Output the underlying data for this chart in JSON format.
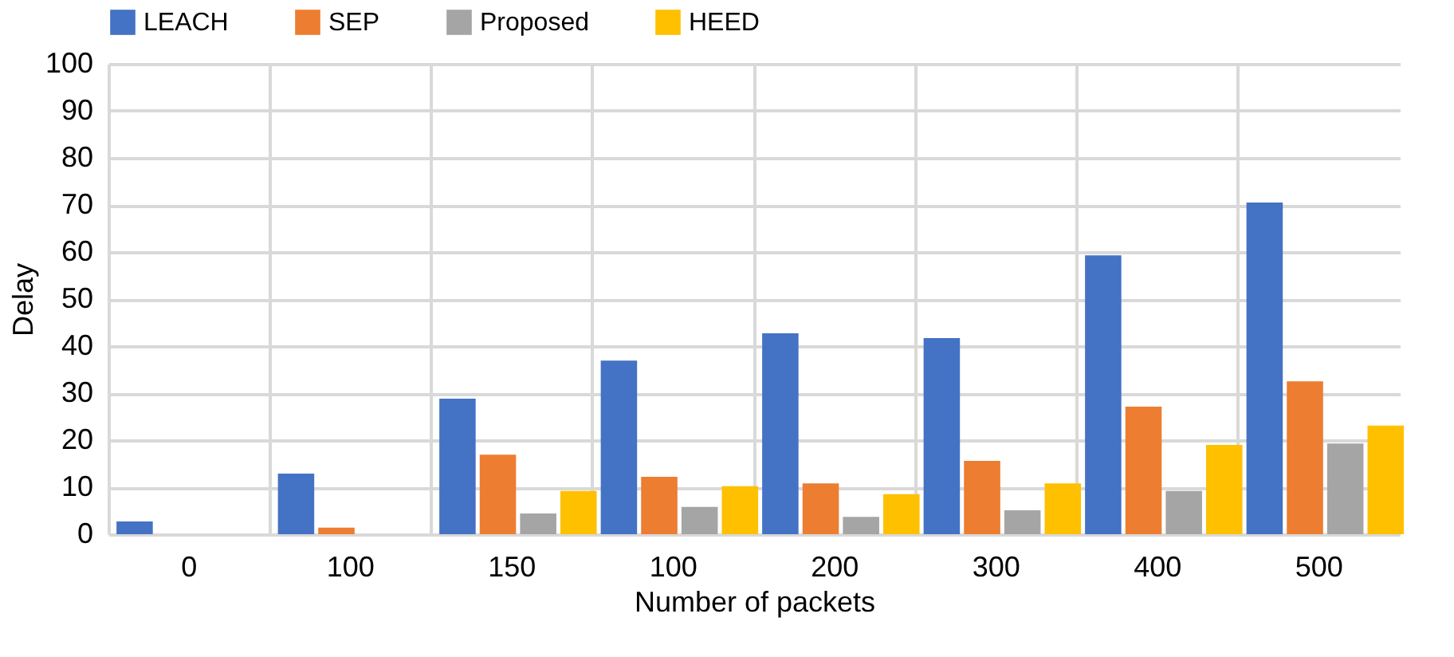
{
  "chart_data": {
    "type": "bar",
    "xlabel": "Number of packets",
    "ylabel": "Delay",
    "categories": [
      "0",
      "100",
      "150",
      "100",
      "200",
      "300",
      "400",
      "500"
    ],
    "series": [
      {
        "name": "LEACH",
        "color": "#4472c4",
        "values": [
          2.7,
          12.9,
          28.8,
          36.9,
          42.7,
          41.7,
          59.3,
          70.5
        ]
      },
      {
        "name": "SEP",
        "color": "#ed7d31",
        "values": [
          null,
          1.4,
          16.9,
          12.2,
          10.8,
          15.6,
          27.1,
          32.5
        ]
      },
      {
        "name": "Proposed",
        "color": "#a5a5a5",
        "values": [
          null,
          null,
          4.4,
          5.8,
          3.7,
          5.1,
          9.2,
          19.3
        ]
      },
      {
        "name": "HEED",
        "color": "#ffc000",
        "values": [
          null,
          null,
          9.2,
          10.2,
          8.5,
          10.8,
          19,
          23.1
        ]
      }
    ],
    "ylim": [
      0,
      100
    ],
    "yticks": [
      0,
      10,
      20,
      30,
      40,
      50,
      60,
      70,
      80,
      90,
      100
    ],
    "grid": true,
    "legend": "top"
  }
}
